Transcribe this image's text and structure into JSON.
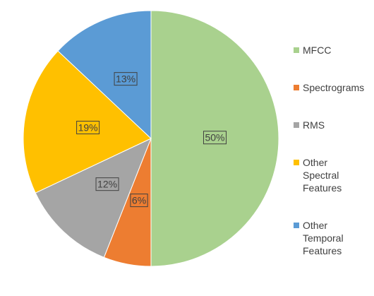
{
  "chart_data": {
    "type": "pie",
    "categories": [
      "MFCC",
      "Spectrograms",
      "RMS",
      "Other Spectral Features",
      "Other Temporal Features"
    ],
    "values": [
      50,
      6,
      12,
      19,
      13
    ],
    "value_labels": [
      "50%",
      "6%",
      "12%",
      "19%",
      "13%"
    ],
    "colors": [
      "#a9d18e",
      "#ed7d31",
      "#a5a5a5",
      "#ffc000",
      "#5b9bd5"
    ],
    "legend": "right"
  }
}
